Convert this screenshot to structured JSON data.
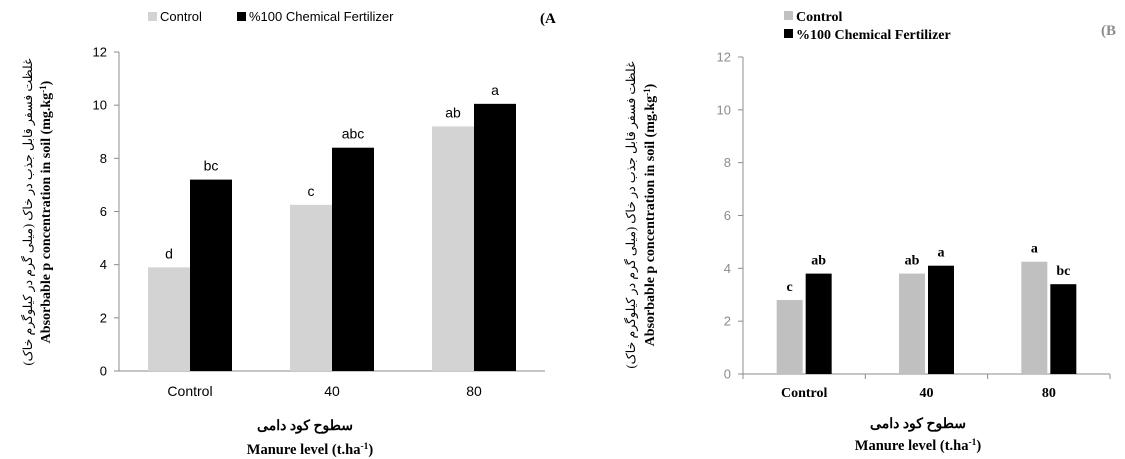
{
  "charts": [
    {
      "panel": "(A",
      "legend": [
        {
          "name": "Control",
          "color": "#d3d3d3"
        },
        {
          "name": "%100 Chemical Fertilizer",
          "color": "#000000"
        }
      ],
      "ylabel_fa": "غلظت فسفر قابل جذب در خاک (میلی گرم در کیلوگرم خاک)",
      "ylabel_en": "Absorbable p concentration in soil (mg.kg-1)",
      "xlabel_fa": "سطوح کود دامی",
      "xlabel_en": "Manure level (t.ha-1)"
    },
    {
      "panel": "(B",
      "legend": [
        {
          "name": "Control",
          "color": "#c0c0c0"
        },
        {
          "name": "%100 Chemical Fertilizer",
          "color": "#000000"
        }
      ],
      "ylabel_fa": "غلظت فسفر قابل جذب در خاک (میلی گرم در کیلوگرم خاک)",
      "ylabel_en": "Absorbable p concentration in soil (mg.kg-1)",
      "xlabel_fa": "سطوح کود دامی",
      "xlabel_en": "Manure level (t.ha-1)"
    }
  ],
  "chart_data": [
    {
      "type": "bar",
      "categories": [
        "Control",
        "40",
        "80"
      ],
      "series": [
        {
          "name": "Control",
          "values": [
            3.9,
            6.25,
            9.2
          ],
          "letters": [
            "d",
            "c",
            "ab"
          ],
          "color": "#d3d3d3"
        },
        {
          "name": "%100 Chemical Fertilizer",
          "values": [
            7.2,
            8.4,
            10.05
          ],
          "letters": [
            "bc",
            "abc",
            "a"
          ],
          "color": "#000000"
        }
      ],
      "ylim": [
        0,
        12
      ],
      "yticks": [
        0,
        2,
        4,
        6,
        8,
        10,
        12
      ],
      "grid": false,
      "legend": "top"
    },
    {
      "type": "bar",
      "categories": [
        "Control",
        "40",
        "80"
      ],
      "series": [
        {
          "name": "Control",
          "values": [
            2.8,
            3.8,
            4.25
          ],
          "letters": [
            "c",
            "ab",
            "a"
          ],
          "color": "#c0c0c0"
        },
        {
          "name": "%100 Chemical Fertilizer",
          "values": [
            3.8,
            4.1,
            3.4
          ],
          "letters": [
            "ab",
            "a",
            "bc"
          ],
          "color": "#000000"
        }
      ],
      "ylim": [
        0,
        12
      ],
      "yticks": [
        0,
        2,
        4,
        6,
        8,
        10,
        12
      ],
      "grid": false,
      "legend": "top-left"
    }
  ]
}
